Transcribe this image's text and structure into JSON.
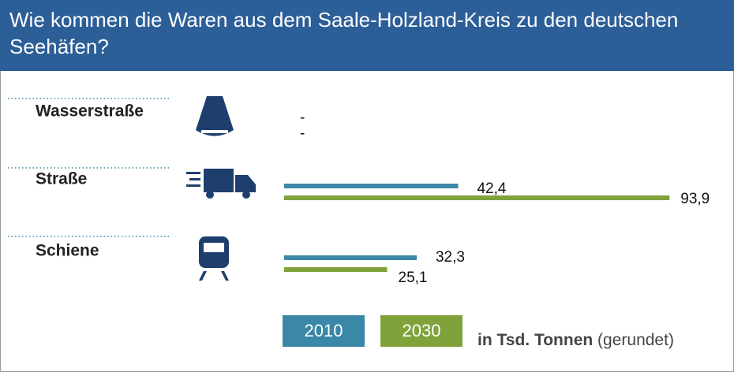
{
  "chart_data": {
    "type": "bar",
    "title": "Wie kommen die Waren aus dem Saale-Holzland-Kreis zu den deutschen Seehäfen?",
    "categories": [
      "Wasserstraße",
      "Straße",
      "Schiene"
    ],
    "series": [
      {
        "name": "2010",
        "color": "#3a87a8",
        "values": [
          null,
          42.4,
          32.3
        ],
        "value_labels": [
          "-",
          "42,4",
          "32,3"
        ]
      },
      {
        "name": "2030",
        "color": "#7fa33a",
        "values": [
          null,
          93.9,
          25.1
        ],
        "value_labels": [
          "-",
          "93,9",
          "25,1"
        ]
      }
    ],
    "unit": "in Tsd. Tonnen",
    "note": "(gerundet)"
  }
}
